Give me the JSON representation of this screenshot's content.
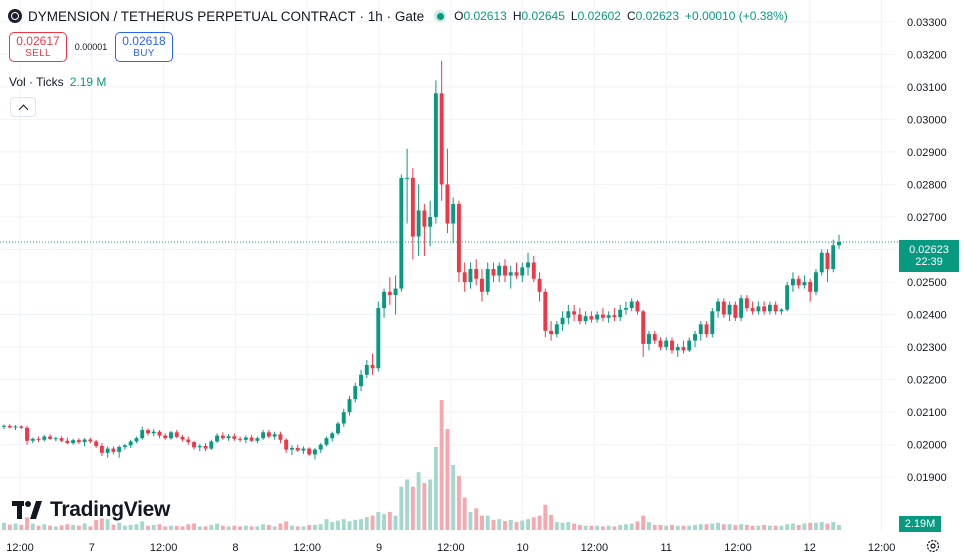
{
  "header": {
    "symbol": "DYMENSION / TETHERUS PERPETUAL CONTRACT",
    "interval": "1h",
    "exchange": "Gate",
    "symbol_icon": "dymension-logo-icon",
    "status_icon": "market-open-dot-icon",
    "ohlc": {
      "o_label": "O",
      "o": "0.02613",
      "h_label": "H",
      "h": "0.02645",
      "l_label": "L",
      "l": "0.02602",
      "c_label": "C",
      "c": "0.02623",
      "change": "+0.00010 (+0.38%)"
    }
  },
  "trade": {
    "sell_price": "0.02617",
    "sell_label": "SELL",
    "spread": "0.00001",
    "buy_price": "0.02618",
    "buy_label": "BUY"
  },
  "volume_legend": {
    "label": "Vol · Ticks",
    "value": "2.19 M"
  },
  "collapse_icon": "chevron-up-icon",
  "branding": {
    "logo_text": "TradingView",
    "logo_icon": "tradingview-logo-icon"
  },
  "last_price_tag": {
    "price": "0.02623",
    "countdown": "22:39"
  },
  "volume_tag": {
    "value": "2.19M"
  },
  "settings_icon": "gear-icon",
  "colors": {
    "up": "#089981",
    "down": "#f23645",
    "up_volume": "#a5d8cd",
    "down_volume": "#f7a8ae",
    "grid": "#f0f3fa"
  },
  "chart_data": {
    "type": "candlestick",
    "y_axis_labels": [
      "0.03300",
      "0.03200",
      "0.03100",
      "0.03000",
      "0.02900",
      "0.02800",
      "0.02700",
      "0.02600",
      "0.02500",
      "0.02400",
      "0.02300",
      "0.02200",
      "0.02100",
      "0.02000",
      "0.01900"
    ],
    "ylim": [
      0.0183,
      0.0333
    ],
    "x_axis_labels": [
      "12:00",
      "7",
      "12:00",
      "8",
      "12:00",
      "9",
      "12:00",
      "10",
      "12:00",
      "11",
      "12:00",
      "12",
      "12:00"
    ],
    "last_price": 0.02623,
    "grid": true,
    "bars": [
      {
        "o": 0.02055,
        "h": 0.02062,
        "l": 0.02048,
        "c": 0.02058,
        "v": 20
      },
      {
        "o": 0.02058,
        "h": 0.02063,
        "l": 0.0205,
        "c": 0.02053,
        "v": 15
      },
      {
        "o": 0.02053,
        "h": 0.0206,
        "l": 0.02045,
        "c": 0.02056,
        "v": 18
      },
      {
        "o": 0.02056,
        "h": 0.0206,
        "l": 0.02048,
        "c": 0.02052,
        "v": 14
      },
      {
        "o": 0.02052,
        "h": 0.02058,
        "l": 0.02,
        "c": 0.02012,
        "v": 35
      },
      {
        "o": 0.02012,
        "h": 0.02022,
        "l": 0.02005,
        "c": 0.02018,
        "v": 18
      },
      {
        "o": 0.02018,
        "h": 0.02025,
        "l": 0.02008,
        "c": 0.02015,
        "v": 12
      },
      {
        "o": 0.02015,
        "h": 0.0203,
        "l": 0.0201,
        "c": 0.02025,
        "v": 16
      },
      {
        "o": 0.02025,
        "h": 0.02032,
        "l": 0.02015,
        "c": 0.02018,
        "v": 12
      },
      {
        "o": 0.02018,
        "h": 0.02025,
        "l": 0.0201,
        "c": 0.0202,
        "v": 10
      },
      {
        "o": 0.0202,
        "h": 0.02026,
        "l": 0.02008,
        "c": 0.02012,
        "v": 13
      },
      {
        "o": 0.02012,
        "h": 0.02022,
        "l": 0.02002,
        "c": 0.02005,
        "v": 16
      },
      {
        "o": 0.02005,
        "h": 0.02018,
        "l": 0.02,
        "c": 0.02014,
        "v": 14
      },
      {
        "o": 0.02014,
        "h": 0.0202,
        "l": 0.02002,
        "c": 0.02008,
        "v": 12
      },
      {
        "o": 0.02008,
        "h": 0.0202,
        "l": 0.01995,
        "c": 0.02016,
        "v": 18
      },
      {
        "o": 0.02016,
        "h": 0.02022,
        "l": 0.02005,
        "c": 0.0201,
        "v": 10
      },
      {
        "o": 0.0201,
        "h": 0.02015,
        "l": 0.0199,
        "c": 0.01996,
        "v": 28
      },
      {
        "o": 0.01996,
        "h": 0.02005,
        "l": 0.01965,
        "c": 0.01975,
        "v": 32
      },
      {
        "o": 0.01975,
        "h": 0.01995,
        "l": 0.0196,
        "c": 0.01988,
        "v": 30
      },
      {
        "o": 0.01988,
        "h": 0.01995,
        "l": 0.0197,
        "c": 0.01978,
        "v": 15
      },
      {
        "o": 0.01978,
        "h": 0.01998,
        "l": 0.0196,
        "c": 0.01993,
        "v": 20
      },
      {
        "o": 0.01993,
        "h": 0.02002,
        "l": 0.01985,
        "c": 0.01998,
        "v": 12
      },
      {
        "o": 0.01998,
        "h": 0.02015,
        "l": 0.0199,
        "c": 0.0201,
        "v": 14
      },
      {
        "o": 0.0201,
        "h": 0.02025,
        "l": 0.02005,
        "c": 0.0202,
        "v": 16
      },
      {
        "o": 0.0202,
        "h": 0.02055,
        "l": 0.02015,
        "c": 0.02045,
        "v": 24
      },
      {
        "o": 0.02045,
        "h": 0.0205,
        "l": 0.02028,
        "c": 0.02035,
        "v": 12
      },
      {
        "o": 0.02035,
        "h": 0.02048,
        "l": 0.02025,
        "c": 0.0204,
        "v": 14
      },
      {
        "o": 0.0204,
        "h": 0.02045,
        "l": 0.0202,
        "c": 0.02028,
        "v": 16
      },
      {
        "o": 0.02028,
        "h": 0.02035,
        "l": 0.02015,
        "c": 0.0202,
        "v": 10
      },
      {
        "o": 0.0202,
        "h": 0.02042,
        "l": 0.02015,
        "c": 0.02038,
        "v": 12
      },
      {
        "o": 0.02038,
        "h": 0.02045,
        "l": 0.0202,
        "c": 0.02024,
        "v": 11
      },
      {
        "o": 0.02024,
        "h": 0.0203,
        "l": 0.0201,
        "c": 0.02016,
        "v": 10
      },
      {
        "o": 0.02016,
        "h": 0.02025,
        "l": 0.02,
        "c": 0.02008,
        "v": 16
      },
      {
        "o": 0.02008,
        "h": 0.02012,
        "l": 0.01985,
        "c": 0.01992,
        "v": 18
      },
      {
        "o": 0.01992,
        "h": 0.02002,
        "l": 0.0198,
        "c": 0.01996,
        "v": 10
      },
      {
        "o": 0.01996,
        "h": 0.02005,
        "l": 0.0198,
        "c": 0.01988,
        "v": 10
      },
      {
        "o": 0.01988,
        "h": 0.02015,
        "l": 0.01984,
        "c": 0.0201,
        "v": 14
      },
      {
        "o": 0.0201,
        "h": 0.02035,
        "l": 0.02005,
        "c": 0.02028,
        "v": 18
      },
      {
        "o": 0.02028,
        "h": 0.02038,
        "l": 0.02015,
        "c": 0.0202,
        "v": 12
      },
      {
        "o": 0.0202,
        "h": 0.02032,
        "l": 0.02012,
        "c": 0.02026,
        "v": 10
      },
      {
        "o": 0.02026,
        "h": 0.02035,
        "l": 0.02012,
        "c": 0.02018,
        "v": 12
      },
      {
        "o": 0.02018,
        "h": 0.02025,
        "l": 0.02008,
        "c": 0.02015,
        "v": 10
      },
      {
        "o": 0.02015,
        "h": 0.02028,
        "l": 0.02005,
        "c": 0.02022,
        "v": 12
      },
      {
        "o": 0.02022,
        "h": 0.0203,
        "l": 0.02008,
        "c": 0.02012,
        "v": 10
      },
      {
        "o": 0.02012,
        "h": 0.02025,
        "l": 0.02005,
        "c": 0.0202,
        "v": 10
      },
      {
        "o": 0.0202,
        "h": 0.02045,
        "l": 0.02015,
        "c": 0.02038,
        "v": 16
      },
      {
        "o": 0.02038,
        "h": 0.02045,
        "l": 0.0202,
        "c": 0.02025,
        "v": 14
      },
      {
        "o": 0.02025,
        "h": 0.0204,
        "l": 0.02015,
        "c": 0.02032,
        "v": 10
      },
      {
        "o": 0.02032,
        "h": 0.0204,
        "l": 0.02005,
        "c": 0.02015,
        "v": 18
      },
      {
        "o": 0.02015,
        "h": 0.0202,
        "l": 0.01975,
        "c": 0.01985,
        "v": 24
      },
      {
        "o": 0.01985,
        "h": 0.01998,
        "l": 0.01968,
        "c": 0.0199,
        "v": 12
      },
      {
        "o": 0.0199,
        "h": 0.02,
        "l": 0.01978,
        "c": 0.01982,
        "v": 10
      },
      {
        "o": 0.01982,
        "h": 0.01995,
        "l": 0.01972,
        "c": 0.01988,
        "v": 10
      },
      {
        "o": 0.01988,
        "h": 0.01992,
        "l": 0.01965,
        "c": 0.0197,
        "v": 14
      },
      {
        "o": 0.0197,
        "h": 0.0199,
        "l": 0.01955,
        "c": 0.01985,
        "v": 14
      },
      {
        "o": 0.01985,
        "h": 0.02005,
        "l": 0.01975,
        "c": 0.02,
        "v": 16
      },
      {
        "o": 0.02,
        "h": 0.02025,
        "l": 0.01995,
        "c": 0.0202,
        "v": 30
      },
      {
        "o": 0.0202,
        "h": 0.0204,
        "l": 0.0201,
        "c": 0.02035,
        "v": 22
      },
      {
        "o": 0.02035,
        "h": 0.0207,
        "l": 0.0203,
        "c": 0.02065,
        "v": 26
      },
      {
        "o": 0.02065,
        "h": 0.0211,
        "l": 0.02055,
        "c": 0.021,
        "v": 30
      },
      {
        "o": 0.021,
        "h": 0.0215,
        "l": 0.0209,
        "c": 0.0214,
        "v": 24
      },
      {
        "o": 0.0214,
        "h": 0.0219,
        "l": 0.0213,
        "c": 0.0218,
        "v": 28
      },
      {
        "o": 0.0218,
        "h": 0.0223,
        "l": 0.02165,
        "c": 0.02215,
        "v": 30
      },
      {
        "o": 0.02215,
        "h": 0.0226,
        "l": 0.02205,
        "c": 0.02245,
        "v": 36
      },
      {
        "o": 0.02245,
        "h": 0.0228,
        "l": 0.02215,
        "c": 0.02235,
        "v": 40
      },
      {
        "o": 0.02235,
        "h": 0.0244,
        "l": 0.02225,
        "c": 0.0242,
        "v": 50
      },
      {
        "o": 0.0242,
        "h": 0.0248,
        "l": 0.0239,
        "c": 0.0247,
        "v": 44
      },
      {
        "o": 0.0247,
        "h": 0.02515,
        "l": 0.0243,
        "c": 0.0246,
        "v": 50
      },
      {
        "o": 0.0246,
        "h": 0.0252,
        "l": 0.024,
        "c": 0.0248,
        "v": 40
      },
      {
        "o": 0.0248,
        "h": 0.0283,
        "l": 0.0247,
        "c": 0.0282,
        "v": 120
      },
      {
        "o": 0.0282,
        "h": 0.0291,
        "l": 0.0268,
        "c": 0.0282,
        "v": 140
      },
      {
        "o": 0.0282,
        "h": 0.0285,
        "l": 0.0257,
        "c": 0.0264,
        "v": 120
      },
      {
        "o": 0.0264,
        "h": 0.028,
        "l": 0.0258,
        "c": 0.0272,
        "v": 160
      },
      {
        "o": 0.0272,
        "h": 0.0274,
        "l": 0.0258,
        "c": 0.0267,
        "v": 130
      },
      {
        "o": 0.0267,
        "h": 0.0275,
        "l": 0.0261,
        "c": 0.027,
        "v": 140
      },
      {
        "o": 0.027,
        "h": 0.0312,
        "l": 0.0268,
        "c": 0.0308,
        "v": 230
      },
      {
        "o": 0.0308,
        "h": 0.0318,
        "l": 0.0275,
        "c": 0.028,
        "v": 360
      },
      {
        "o": 0.028,
        "h": 0.0291,
        "l": 0.0265,
        "c": 0.0268,
        "v": 280
      },
      {
        "o": 0.0268,
        "h": 0.0276,
        "l": 0.0262,
        "c": 0.0274,
        "v": 180
      },
      {
        "o": 0.0274,
        "h": 0.0275,
        "l": 0.025,
        "c": 0.0253,
        "v": 150
      },
      {
        "o": 0.0253,
        "h": 0.0256,
        "l": 0.0247,
        "c": 0.025,
        "v": 90
      },
      {
        "o": 0.025,
        "h": 0.0256,
        "l": 0.0248,
        "c": 0.0254,
        "v": 50
      },
      {
        "o": 0.0254,
        "h": 0.0257,
        "l": 0.0249,
        "c": 0.0251,
        "v": 60
      },
      {
        "o": 0.0251,
        "h": 0.0254,
        "l": 0.0244,
        "c": 0.0247,
        "v": 40
      },
      {
        "o": 0.0247,
        "h": 0.0256,
        "l": 0.0246,
        "c": 0.0254,
        "v": 40
      },
      {
        "o": 0.0254,
        "h": 0.0256,
        "l": 0.025,
        "c": 0.0252,
        "v": 28
      },
      {
        "o": 0.0252,
        "h": 0.0256,
        "l": 0.025,
        "c": 0.0255,
        "v": 30
      },
      {
        "o": 0.0255,
        "h": 0.0257,
        "l": 0.025,
        "c": 0.0252,
        "v": 25
      },
      {
        "o": 0.0252,
        "h": 0.0255,
        "l": 0.0248,
        "c": 0.0253,
        "v": 28
      },
      {
        "o": 0.0253,
        "h": 0.0256,
        "l": 0.0251,
        "c": 0.0252,
        "v": 22
      },
      {
        "o": 0.0252,
        "h": 0.0256,
        "l": 0.025,
        "c": 0.02545,
        "v": 26
      },
      {
        "o": 0.02545,
        "h": 0.0259,
        "l": 0.0252,
        "c": 0.0256,
        "v": 30
      },
      {
        "o": 0.0256,
        "h": 0.0258,
        "l": 0.025,
        "c": 0.0251,
        "v": 35
      },
      {
        "o": 0.0251,
        "h": 0.0253,
        "l": 0.0244,
        "c": 0.0247,
        "v": 40
      },
      {
        "o": 0.0247,
        "h": 0.0248,
        "l": 0.0233,
        "c": 0.0235,
        "v": 70
      },
      {
        "o": 0.0235,
        "h": 0.0238,
        "l": 0.0232,
        "c": 0.0234,
        "v": 42
      },
      {
        "o": 0.0234,
        "h": 0.0238,
        "l": 0.0233,
        "c": 0.0237,
        "v": 22
      },
      {
        "o": 0.0237,
        "h": 0.0241,
        "l": 0.0235,
        "c": 0.0239,
        "v": 20
      },
      {
        "o": 0.0239,
        "h": 0.0243,
        "l": 0.0237,
        "c": 0.0241,
        "v": 22
      },
      {
        "o": 0.0241,
        "h": 0.0243,
        "l": 0.0238,
        "c": 0.024,
        "v": 18
      },
      {
        "o": 0.024,
        "h": 0.0242,
        "l": 0.0237,
        "c": 0.0238,
        "v": 14
      },
      {
        "o": 0.0238,
        "h": 0.0241,
        "l": 0.0237,
        "c": 0.02395,
        "v": 12
      },
      {
        "o": 0.02395,
        "h": 0.0241,
        "l": 0.02375,
        "c": 0.02385,
        "v": 12
      },
      {
        "o": 0.02385,
        "h": 0.0241,
        "l": 0.02375,
        "c": 0.024,
        "v": 12
      },
      {
        "o": 0.024,
        "h": 0.0242,
        "l": 0.0238,
        "c": 0.0239,
        "v": 10
      },
      {
        "o": 0.0239,
        "h": 0.0241,
        "l": 0.02375,
        "c": 0.02398,
        "v": 12
      },
      {
        "o": 0.02398,
        "h": 0.0242,
        "l": 0.0238,
        "c": 0.02392,
        "v": 10
      },
      {
        "o": 0.02392,
        "h": 0.0243,
        "l": 0.0238,
        "c": 0.02415,
        "v": 14
      },
      {
        "o": 0.02415,
        "h": 0.0244,
        "l": 0.024,
        "c": 0.0242,
        "v": 16
      },
      {
        "o": 0.0242,
        "h": 0.0245,
        "l": 0.0241,
        "c": 0.0244,
        "v": 18
      },
      {
        "o": 0.0244,
        "h": 0.02445,
        "l": 0.024,
        "c": 0.0241,
        "v": 24
      },
      {
        "o": 0.0241,
        "h": 0.02415,
        "l": 0.0227,
        "c": 0.0231,
        "v": 40
      },
      {
        "o": 0.0231,
        "h": 0.0235,
        "l": 0.0229,
        "c": 0.0234,
        "v": 22
      },
      {
        "o": 0.0234,
        "h": 0.0235,
        "l": 0.0231,
        "c": 0.0232,
        "v": 14
      },
      {
        "o": 0.0232,
        "h": 0.0233,
        "l": 0.0229,
        "c": 0.023,
        "v": 14
      },
      {
        "o": 0.023,
        "h": 0.0233,
        "l": 0.0229,
        "c": 0.0232,
        "v": 12
      },
      {
        "o": 0.0232,
        "h": 0.0233,
        "l": 0.0228,
        "c": 0.0229,
        "v": 14
      },
      {
        "o": 0.0229,
        "h": 0.0231,
        "l": 0.0227,
        "c": 0.023,
        "v": 12
      },
      {
        "o": 0.023,
        "h": 0.0232,
        "l": 0.0228,
        "c": 0.0229,
        "v": 12
      },
      {
        "o": 0.0229,
        "h": 0.0233,
        "l": 0.02285,
        "c": 0.0232,
        "v": 12
      },
      {
        "o": 0.0232,
        "h": 0.0235,
        "l": 0.023,
        "c": 0.0234,
        "v": 14
      },
      {
        "o": 0.0234,
        "h": 0.0238,
        "l": 0.0232,
        "c": 0.0237,
        "v": 16
      },
      {
        "o": 0.0237,
        "h": 0.0238,
        "l": 0.0233,
        "c": 0.0234,
        "v": 16
      },
      {
        "o": 0.0234,
        "h": 0.0242,
        "l": 0.0233,
        "c": 0.0241,
        "v": 18
      },
      {
        "o": 0.0241,
        "h": 0.0245,
        "l": 0.0239,
        "c": 0.0244,
        "v": 20
      },
      {
        "o": 0.0244,
        "h": 0.0245,
        "l": 0.0239,
        "c": 0.024,
        "v": 16
      },
      {
        "o": 0.024,
        "h": 0.0244,
        "l": 0.0238,
        "c": 0.0243,
        "v": 16
      },
      {
        "o": 0.0243,
        "h": 0.0244,
        "l": 0.0238,
        "c": 0.0239,
        "v": 14
      },
      {
        "o": 0.0239,
        "h": 0.0246,
        "l": 0.0238,
        "c": 0.0245,
        "v": 16
      },
      {
        "o": 0.0245,
        "h": 0.0246,
        "l": 0.0241,
        "c": 0.0242,
        "v": 14
      },
      {
        "o": 0.0242,
        "h": 0.0244,
        "l": 0.024,
        "c": 0.0241,
        "v": 12
      },
      {
        "o": 0.0241,
        "h": 0.0244,
        "l": 0.024,
        "c": 0.02425,
        "v": 12
      },
      {
        "o": 0.02425,
        "h": 0.0244,
        "l": 0.024,
        "c": 0.0241,
        "v": 14
      },
      {
        "o": 0.0241,
        "h": 0.0244,
        "l": 0.024,
        "c": 0.0243,
        "v": 12
      },
      {
        "o": 0.0243,
        "h": 0.0244,
        "l": 0.024,
        "c": 0.0241,
        "v": 12
      },
      {
        "o": 0.0241,
        "h": 0.0242,
        "l": 0.024,
        "c": 0.02415,
        "v": 12
      },
      {
        "o": 0.02415,
        "h": 0.025,
        "l": 0.0241,
        "c": 0.0249,
        "v": 16
      },
      {
        "o": 0.0249,
        "h": 0.0253,
        "l": 0.0247,
        "c": 0.0251,
        "v": 18
      },
      {
        "o": 0.0251,
        "h": 0.0252,
        "l": 0.0248,
        "c": 0.0249,
        "v": 14
      },
      {
        "o": 0.0249,
        "h": 0.0252,
        "l": 0.0248,
        "c": 0.025,
        "v": 18
      },
      {
        "o": 0.025,
        "h": 0.0251,
        "l": 0.0244,
        "c": 0.0247,
        "v": 20
      },
      {
        "o": 0.0247,
        "h": 0.0254,
        "l": 0.0246,
        "c": 0.0253,
        "v": 20
      },
      {
        "o": 0.0253,
        "h": 0.026,
        "l": 0.0252,
        "c": 0.0259,
        "v": 22
      },
      {
        "o": 0.0259,
        "h": 0.026,
        "l": 0.025,
        "c": 0.0254,
        "v": 18
      },
      {
        "o": 0.0254,
        "h": 0.0263,
        "l": 0.0253,
        "c": 0.02613,
        "v": 22
      },
      {
        "o": 0.02613,
        "h": 0.02645,
        "l": 0.02602,
        "c": 0.02623,
        "v": 14
      }
    ]
  }
}
